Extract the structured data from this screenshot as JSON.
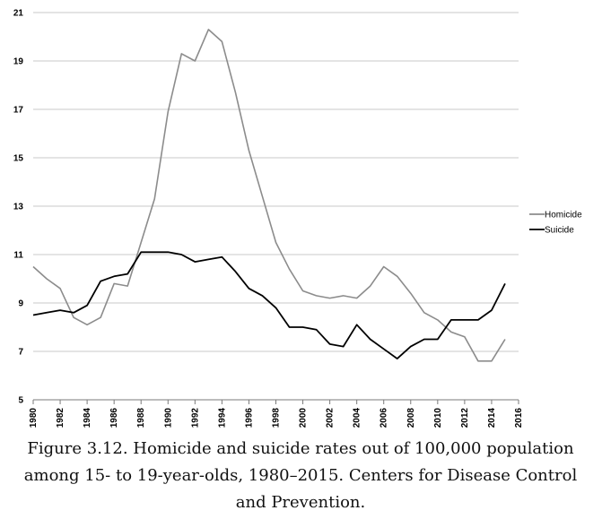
{
  "chart_data": {
    "type": "line",
    "title": "",
    "xlabel": "",
    "ylabel": "",
    "x": [
      1980,
      1981,
      1982,
      1983,
      1984,
      1985,
      1986,
      1987,
      1988,
      1989,
      1990,
      1991,
      1992,
      1993,
      1994,
      1995,
      1996,
      1997,
      1998,
      1999,
      2000,
      2001,
      2002,
      2003,
      2004,
      2005,
      2006,
      2007,
      2008,
      2009,
      2010,
      2011,
      2012,
      2013,
      2014,
      2015
    ],
    "series": [
      {
        "name": "Homicide",
        "color": "#8c8c8c",
        "values": [
          10.5,
          10.0,
          9.6,
          8.4,
          8.1,
          8.4,
          9.8,
          9.7,
          11.5,
          13.3,
          16.9,
          19.3,
          19.0,
          20.3,
          19.8,
          17.7,
          15.3,
          13.4,
          11.5,
          10.4,
          9.5,
          9.3,
          9.2,
          9.3,
          9.2,
          9.7,
          10.5,
          10.1,
          9.4,
          8.6,
          8.3,
          7.8,
          7.6,
          6.6,
          6.6,
          7.5
        ]
      },
      {
        "name": "Suicide",
        "color": "#000000",
        "values": [
          8.5,
          8.6,
          8.7,
          8.6,
          8.9,
          9.9,
          10.1,
          10.2,
          11.1,
          11.1,
          11.1,
          11.0,
          10.7,
          10.8,
          10.9,
          10.3,
          9.6,
          9.3,
          8.8,
          8.0,
          8.0,
          7.9,
          7.3,
          7.2,
          8.1,
          7.5,
          7.1,
          6.7,
          7.2,
          7.5,
          7.5,
          8.3,
          8.3,
          8.3,
          8.7,
          9.8
        ]
      }
    ],
    "xlim": [
      1980,
      2016
    ],
    "ylim": [
      5,
      21
    ],
    "yticks": [
      5,
      7,
      9,
      11,
      13,
      15,
      17,
      19,
      21
    ],
    "xticks": [
      1980,
      1982,
      1984,
      1986,
      1988,
      1990,
      1992,
      1994,
      1996,
      1998,
      2000,
      2002,
      2004,
      2006,
      2008,
      2010,
      2012,
      2014,
      2016
    ],
    "grid": "horizontal",
    "legend": "right"
  },
  "caption": "Figure 3.12. Homicide and suicide rates out of 100,000 population among 15- to 19-year-olds, 1980–2015. Centers for Disease Control and Prevention."
}
